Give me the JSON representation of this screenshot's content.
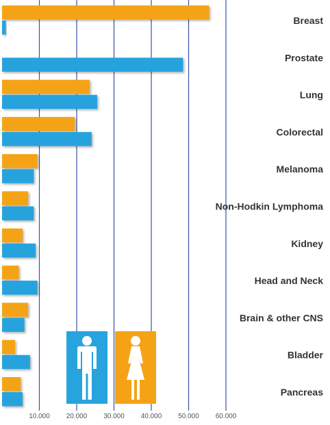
{
  "chart_data": {
    "type": "bar",
    "orientation": "horizontal",
    "categories": [
      "Breast",
      "Prostate",
      "Lung",
      "Colorectal",
      "Melanoma",
      "Non-Hodkin Lymphoma",
      "Kidney",
      "Head and Neck",
      "Brain & other CNS",
      "Bladder",
      "Pancreas"
    ],
    "series": [
      {
        "key": "female",
        "color": "#F5A316",
        "values": [
          55500,
          0,
          23500,
          19500,
          9500,
          7000,
          5500,
          4500,
          7000,
          3500,
          5000
        ]
      },
      {
        "key": "male",
        "color": "#27A3DD",
        "values": [
          1000,
          48500,
          25500,
          24000,
          8500,
          8500,
          9000,
          9500,
          6000,
          7500,
          5500
        ]
      }
    ],
    "x_ticks": [
      "10.000",
      "20.000",
      "30.000",
      "40.000",
      "50.000",
      "60.000"
    ],
    "x_tick_values": [
      10000,
      20000,
      30000,
      40000,
      50000,
      60000
    ],
    "xlim": [
      0,
      60000
    ],
    "grid": true,
    "legend": {
      "placement": "bottom-center",
      "items": [
        {
          "icon": "male-figure-icon",
          "color": "#27A3DD"
        },
        {
          "icon": "female-figure-icon",
          "color": "#F5A316"
        }
      ]
    }
  }
}
